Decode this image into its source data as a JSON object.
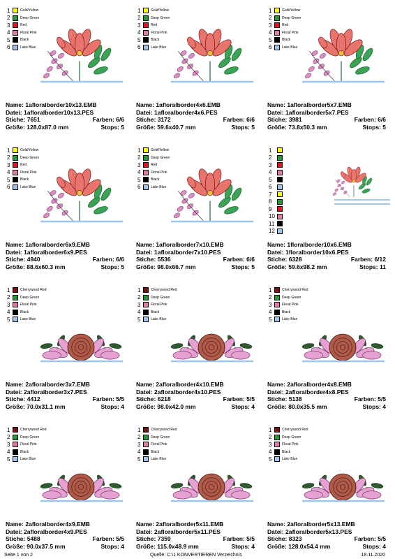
{
  "palettes": {
    "a6": [
      {
        "num": "1",
        "name": "Gold/Yellow",
        "color": "#ffff00"
      },
      {
        "num": "2",
        "name": "Deep Green",
        "color": "#1f9a3a"
      },
      {
        "num": "3",
        "name": "Red",
        "color": "#e0141e"
      },
      {
        "num": "4",
        "name": "Floral Pink",
        "color": "#e47aa8"
      },
      {
        "num": "5",
        "name": "Black",
        "color": "#000000"
      },
      {
        "num": "6",
        "name": "Lake Blue",
        "color": "#9fc4ee"
      }
    ],
    "a12": [
      {
        "num": "1",
        "name": "",
        "color": "#ffff00"
      },
      {
        "num": "2",
        "name": "",
        "color": "#1f9a3a"
      },
      {
        "num": "3",
        "name": "",
        "color": "#e0141e"
      },
      {
        "num": "4",
        "name": "",
        "color": "#e47aa8"
      },
      {
        "num": "5",
        "name": "",
        "color": "#000000"
      },
      {
        "num": "6",
        "name": "",
        "color": "#9fc4ee"
      },
      {
        "num": "7",
        "name": "",
        "color": "#ffff00"
      },
      {
        "num": "8",
        "name": "",
        "color": "#1f9a3a"
      },
      {
        "num": "9",
        "name": "",
        "color": "#e0141e"
      },
      {
        "num": "10",
        "name": "",
        "color": "#e47aa8"
      },
      {
        "num": "11",
        "name": "",
        "color": "#000000"
      },
      {
        "num": "12",
        "name": "",
        "color": "#9fc4ee"
      }
    ],
    "b5": [
      {
        "num": "1",
        "name": "Cherrywood Red",
        "color": "#7a1010"
      },
      {
        "num": "2",
        "name": "Deep Green",
        "color": "#1f9a3a"
      },
      {
        "num": "3",
        "name": "Floral Pink",
        "color": "#e47aa8"
      },
      {
        "num": "4",
        "name": "Black",
        "color": "#000000"
      },
      {
        "num": "5",
        "name": "Lake Blue",
        "color": "#9fc4ee"
      }
    ]
  },
  "labels": {
    "name": "Name:",
    "file": "Datei:",
    "stitches": "Stiche:",
    "size": "Größe:",
    "colors": "Farben:",
    "stops": "Stops:"
  },
  "designs": [
    {
      "name": "1afloralborder10x13.EMB",
      "file": "1afloralborder10x13.PES",
      "stitches": "7651",
      "size": "128.0x87.0 mm",
      "colors": "6/6",
      "stops": "5",
      "palette": "a6",
      "art": "lily"
    },
    {
      "name": "1afloralborder4x6.EMB",
      "file": "1afloralborder4x6.PES",
      "stitches": "3172",
      "size": "59.6x40.7 mm",
      "colors": "6/6",
      "stops": "5",
      "palette": "a6",
      "art": "lily"
    },
    {
      "name": "1afloralborder5x7.EMB",
      "file": "1afloralborder5x7.PES",
      "stitches": "3981",
      "size": "73.8x50.3 mm",
      "colors": "6/6",
      "stops": "5",
      "palette": "a6",
      "art": "lily"
    },
    {
      "name": "1afloralborder6x9.EMB",
      "file": "1afloralborder6x9.PES",
      "stitches": "4940",
      "size": "88.6x60.3 mm",
      "colors": "6/6",
      "stops": "5",
      "palette": "a6",
      "art": "lily"
    },
    {
      "name": "1afloralborder7x10.EMB",
      "file": "1afloralborder7x10.PES",
      "stitches": "5536",
      "size": "98.0x66.7 mm",
      "colors": "6/6",
      "stops": "5",
      "palette": "a6",
      "art": "lily"
    },
    {
      "name": "1floralborder10x6.EMB",
      "file": "1floralborder10x6.PES",
      "stitches": "6328",
      "size": "59.6x98.2 mm",
      "colors": "6/12",
      "stops": "11",
      "palette": "a12",
      "art": "double"
    },
    {
      "name": "2afloralborder3x7.EMB",
      "file": "2afloralborder3x7.PES",
      "stitches": "4412",
      "size": "70.0x31.1 mm",
      "colors": "5/5",
      "stops": "4",
      "palette": "b5",
      "art": "rose"
    },
    {
      "name": "2afloralborder4x10.EMB",
      "file": "2afloralborder4x10.PES",
      "stitches": "6218",
      "size": "98.0x42.0 mm",
      "colors": "5/5",
      "stops": "4",
      "palette": "b5",
      "art": "rose"
    },
    {
      "name": "2afloralborder4x8.EMB",
      "file": "2afloralborder4x8.PES",
      "stitches": "5138",
      "size": "80.0x35.5 mm",
      "colors": "5/5",
      "stops": "4",
      "palette": "b5",
      "art": "rose"
    },
    {
      "name": "2afloralborder4x9.EMB",
      "file": "2afloralborder4x9.PES",
      "stitches": "5488",
      "size": "90.0x37.5 mm",
      "colors": "5/5",
      "stops": "4",
      "palette": "b5",
      "art": "rose"
    },
    {
      "name": "2afloralborder5x11.EMB",
      "file": "2afloralborder5x11.PES",
      "stitches": "7359",
      "size": "115.0x48.9 mm",
      "colors": "5/5",
      "stops": "4",
      "palette": "b5",
      "art": "rose"
    },
    {
      "name": "2afloralborder5x13.EMB",
      "file": "2afloralborder5x13.PES",
      "stitches": "8323",
      "size": "128.0x54.4 mm",
      "colors": "5/5",
      "stops": "4",
      "palette": "b5",
      "art": "rose"
    }
  ],
  "footer": {
    "page": "Seite 1 von 2",
    "source": "Quelle: C:\\1 KONVERTIEREN Verzeichnis",
    "date": "18.11.2020"
  },
  "theme": {
    "line_blue": "#9fc4ee",
    "lily_red": "#e8746c",
    "leaf_green": "#3aa356",
    "lilac": "#d98ec4",
    "rose_brown": "#b05a4a",
    "rose_pink": "#e6a0d2"
  }
}
